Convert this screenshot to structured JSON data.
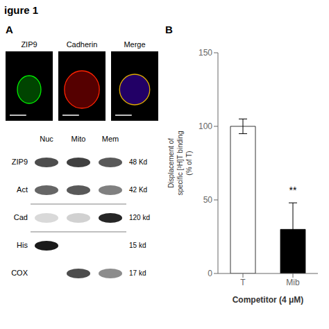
{
  "chart_data": [
    {
      "type": "image_panels",
      "title": "igure 1",
      "subtitle": "A",
      "categories": [
        "ZIP9",
        "Cadherin",
        "Merge"
      ]
    },
    {
      "type": "blot",
      "rows": [
        "ZIP9",
        "Act",
        "Cad",
        "His",
        "COX"
      ],
      "columns": [
        "Nuc",
        "Mito",
        "Mem"
      ],
      "row_labels": [
        "48 Kd",
        "42 Kd",
        "120 kd",
        "15 kd",
        "17 kd"
      ],
      "cells": [
        [
          0.3,
          0.25,
          0.35
        ],
        [
          0.4,
          0.35,
          0.5
        ],
        [
          0.85,
          0.82,
          0.15
        ],
        [
          0.1,
          null,
          null
        ],
        [
          null,
          0.3,
          0.55
        ]
      ]
    },
    {
      "type": "bar",
      "title": "B",
      "categories": [
        "T",
        "Mib"
      ],
      "values": [
        100,
        30
      ],
      "errors": [
        5,
        18
      ],
      "colors": [
        "#ffffff",
        "#000000"
      ],
      "xlabel": "Competitor (4 μM)",
      "ylabel": "Displacement of\nspecific [³H]T binding\n(% of T)",
      "ylim": [
        0,
        150
      ],
      "yticks": [
        0,
        50,
        100,
        150
      ],
      "grid": false,
      "annotations": [
        {
          "text": "**",
          "x": "Mib",
          "y": 52
        }
      ]
    }
  ]
}
